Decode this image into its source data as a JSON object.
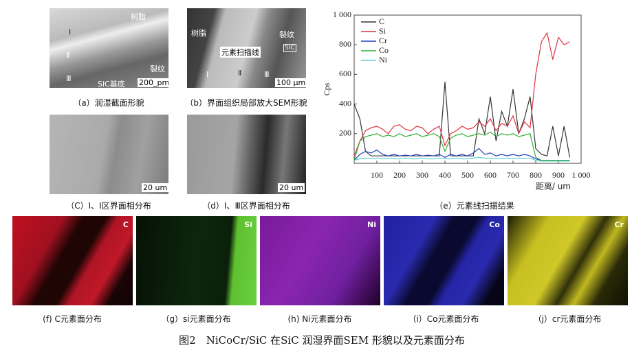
{
  "panels": [
    {
      "caption": "（a）润湿截面形貌",
      "labels": [
        "树脂",
        "Ⅰ",
        "Ⅱ",
        "Ⅲ",
        "裂纹",
        "SiC基底",
        "200_pm"
      ]
    },
    {
      "caption": "（b）界面组织局部放大SEM形貌",
      "labels": [
        "树脂",
        "裂纹",
        "元素扫描线",
        "SIC",
        "Ⅰ",
        "Ⅱ",
        "Ⅲ",
        "100 μm"
      ]
    },
    {
      "caption": "（C）Ⅰ、Ⅰ区界面相分布",
      "labels": [
        "20 um"
      ]
    },
    {
      "caption": "（d）Ⅰ、Ⅲ区界面相分布",
      "labels": [
        "20 um"
      ]
    }
  ],
  "chart_data": {
    "type": "line",
    "caption": "（e）元素线扫描结果",
    "x_label": "距离/ um",
    "y_label": "Cps",
    "x": [
      0,
      25,
      50,
      75,
      100,
      125,
      150,
      175,
      200,
      225,
      250,
      275,
      300,
      325,
      350,
      375,
      400,
      425,
      450,
      475,
      500,
      525,
      550,
      575,
      600,
      625,
      650,
      675,
      700,
      725,
      750,
      775,
      800,
      825,
      850,
      875,
      900,
      925,
      950
    ],
    "series": [
      {
        "name": "C",
        "color": "#333333",
        "values": [
          400,
          300,
          80,
          50,
          50,
          50,
          50,
          50,
          50,
          50,
          50,
          50,
          50,
          50,
          50,
          50,
          550,
          50,
          50,
          50,
          50,
          50,
          300,
          200,
          450,
          150,
          350,
          250,
          500,
          200,
          300,
          450,
          100,
          60,
          50,
          250,
          50,
          250,
          40
        ]
      },
      {
        "name": "Si",
        "color": "#e03040",
        "values": [
          50,
          150,
          220,
          240,
          250,
          230,
          200,
          250,
          260,
          230,
          220,
          250,
          240,
          200,
          230,
          250,
          120,
          200,
          220,
          250,
          230,
          240,
          280,
          250,
          300,
          220,
          270,
          250,
          320,
          200,
          280,
          240,
          600,
          820,
          880,
          700,
          850,
          800,
          820
        ]
      },
      {
        "name": "Cr",
        "color": "#2040c0",
        "values": [
          20,
          60,
          80,
          70,
          90,
          60,
          50,
          60,
          50,
          55,
          50,
          60,
          50,
          55,
          50,
          60,
          40,
          60,
          50,
          60,
          50,
          70,
          100,
          60,
          70,
          50,
          60,
          50,
          60,
          50,
          60,
          50,
          30,
          20,
          20,
          20,
          20,
          20,
          20
        ]
      },
      {
        "name": "Co",
        "color": "#30b030",
        "values": [
          20,
          150,
          180,
          190,
          200,
          180,
          190,
          180,
          200,
          180,
          190,
          200,
          180,
          190,
          200,
          180,
          80,
          170,
          190,
          200,
          180,
          190,
          200,
          190,
          210,
          180,
          200,
          190,
          200,
          180,
          190,
          200,
          40,
          20,
          20,
          20,
          20,
          20,
          20
        ]
      },
      {
        "name": "Ni",
        "color": "#60d0d0",
        "values": [
          20,
          30,
          35,
          30,
          35,
          30,
          35,
          30,
          30,
          35,
          30,
          30,
          35,
          30,
          30,
          35,
          30,
          30,
          35,
          30,
          30,
          35,
          40,
          35,
          30,
          35,
          30,
          35,
          30,
          35,
          30,
          35,
          20,
          15,
          15,
          15,
          15,
          15,
          15
        ]
      }
    ],
    "xlim": [
      0,
      1000
    ],
    "ylim": [
      0,
      1000
    ],
    "xticks": [
      100,
      200,
      300,
      400,
      500,
      600,
      700,
      800,
      900,
      {
        "value": 1000,
        "label": "1 000"
      }
    ],
    "yticks": [
      200,
      400,
      600,
      800,
      {
        "value": 1000,
        "label": "1 000"
      }
    ],
    "legend": "top-left"
  },
  "maps": [
    {
      "label": "C",
      "caption": "(f) C元素面分布"
    },
    {
      "label": "Si",
      "caption": "（g）si元素面分布"
    },
    {
      "label": "Ni",
      "caption": "(h) Ni元素面分布"
    },
    {
      "label": "Co",
      "caption": "（i）Co元素面分布"
    },
    {
      "label": "Cr",
      "caption": "（j）cr元素面分布"
    }
  ],
  "figure_caption": "图2　NiCoCr/SiC 在SiC 润湿界面SEM 形貌以及元素面分布"
}
